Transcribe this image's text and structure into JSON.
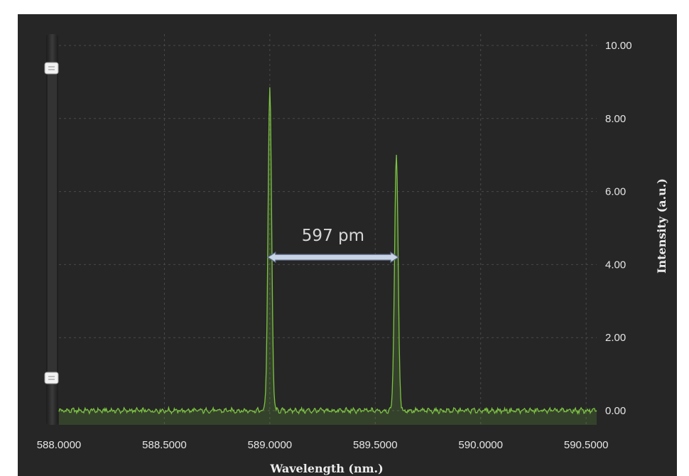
{
  "chart_data": {
    "type": "line",
    "xlabel": "Wavelength (nm.)",
    "ylabel": "Intensity (a.u.)",
    "xlim": [
      588.0,
      590.55
    ],
    "ylim": [
      0.0,
      10.0
    ],
    "x_ticks": [
      "588.0000",
      "588.5000",
      "589.0000",
      "589.5000",
      "590.0000",
      "590.5000"
    ],
    "y_ticks": [
      "0.00",
      "2.00",
      "4.00",
      "6.00",
      "8.00",
      "10.00"
    ],
    "y_axis_side": "right",
    "grid": true,
    "series": [
      {
        "peaks": [
          {
            "x": 589.0,
            "y": 8.8,
            "fwhm": 0.02
          },
          {
            "x": 589.6,
            "y": 7.0,
            "fwhm": 0.02
          }
        ],
        "baseline": 0.0,
        "color": "#7cc242"
      }
    ],
    "annotations": [
      {
        "text": "597 pm",
        "from_x": 589.0,
        "to_x": 589.6,
        "y": 4.2
      }
    ]
  },
  "colors": {
    "panel_background": "#262626",
    "grid": "#4a4a4a",
    "line": "#7cc242",
    "fill": "rgba(124,194,66,0.18)",
    "arrow": "#c8d3e6"
  }
}
